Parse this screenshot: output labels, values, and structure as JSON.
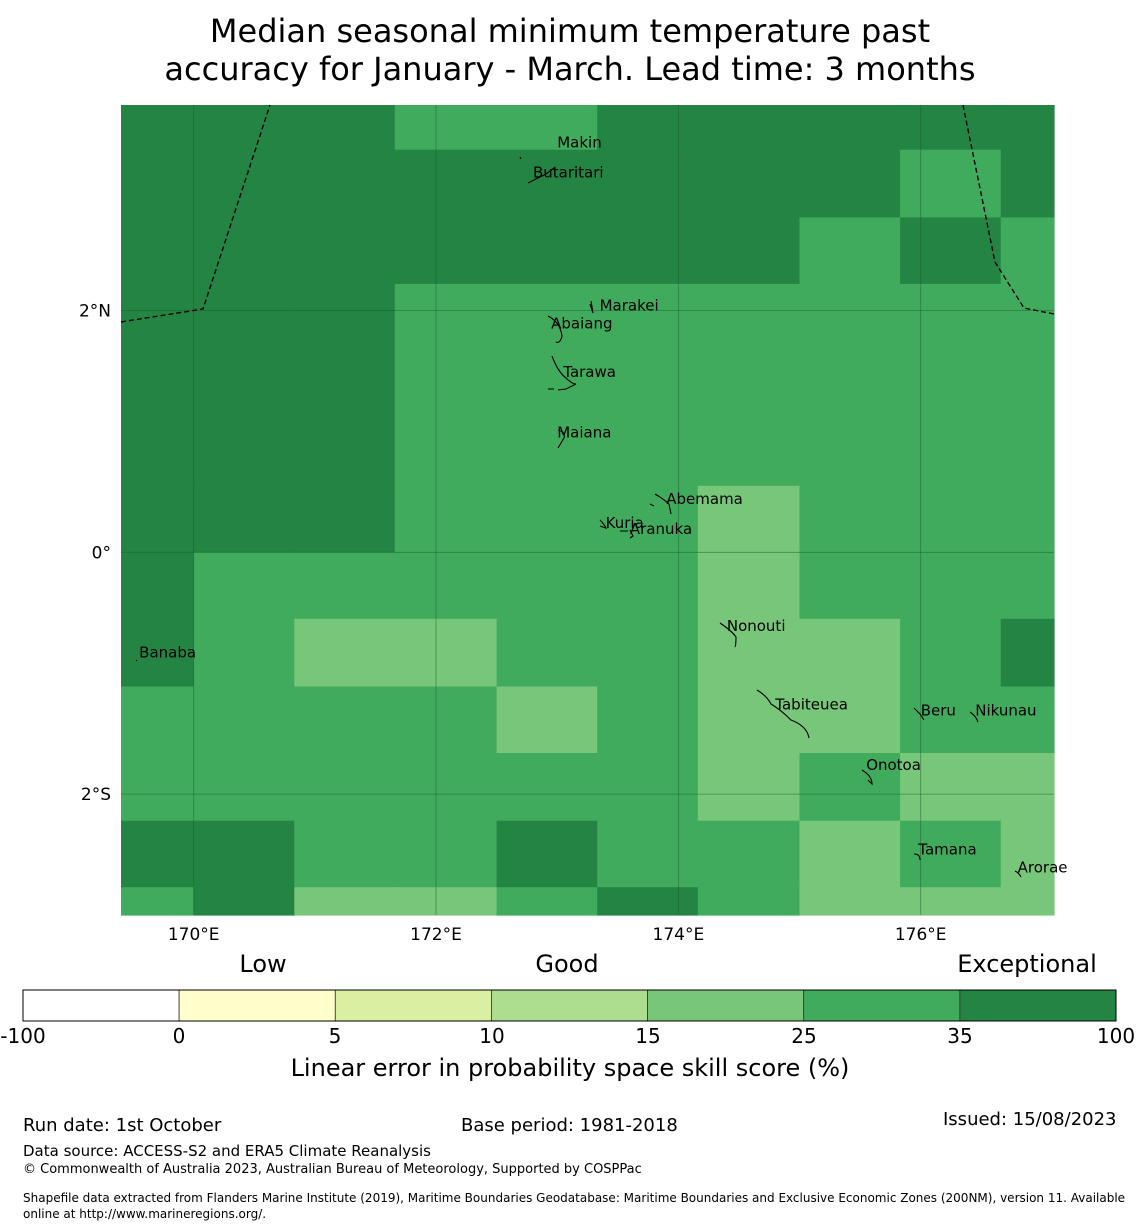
{
  "title_line1": "Median seasonal minimum temperature past",
  "title_line2": "accuracy for January - March. Lead time: 3 months",
  "map": {
    "lon_range": [
      169.4,
      177.1
    ],
    "lat_range": [
      -3.0,
      3.7
    ],
    "x_ticks": [
      {
        "lon": 170,
        "label": "170°E"
      },
      {
        "lon": 172,
        "label": "172°E"
      },
      {
        "lon": 174,
        "label": "174°E"
      },
      {
        "lon": 176,
        "label": "176°E"
      }
    ],
    "y_ticks": [
      {
        "lat": 2,
        "label": "2°N"
      },
      {
        "lat": 0,
        "label": "0°"
      },
      {
        "lat": -2,
        "label": "2°S"
      }
    ],
    "cell_colors": {
      "c25": "#78c679",
      "c35": "#41ab5d",
      "c100": "#238443"
    },
    "cell_grid_note": "rows top->bottom, columns left->right; value = colour class",
    "cols": [
      169.4,
      170.0,
      170.83,
      171.66,
      172.5,
      173.33,
      174.16,
      175.0,
      175.83,
      176.66,
      177.1
    ],
    "rows": [
      3.7,
      3.33,
      2.77,
      2.22,
      1.66,
      1.11,
      0.55,
      0.0,
      -0.55,
      -1.11,
      -1.66,
      -2.22,
      -2.77,
      -3.0
    ],
    "cells": [
      [
        "c100",
        "c100",
        "c100",
        "c35",
        "c35",
        "c100",
        "c100",
        "c100",
        "c100",
        "c100"
      ],
      [
        "c100",
        "c100",
        "c100",
        "c100",
        "c100",
        "c100",
        "c100",
        "c100",
        "c35",
        "c100"
      ],
      [
        "c100",
        "c100",
        "c100",
        "c100",
        "c100",
        "c100",
        "c100",
        "c35",
        "c100",
        "c35"
      ],
      [
        "c100",
        "c100",
        "c100",
        "c35",
        "c35",
        "c35",
        "c35",
        "c35",
        "c35",
        "c35"
      ],
      [
        "c100",
        "c100",
        "c100",
        "c35",
        "c35",
        "c35",
        "c35",
        "c35",
        "c35",
        "c35"
      ],
      [
        "c100",
        "c100",
        "c100",
        "c35",
        "c35",
        "c35",
        "c35",
        "c35",
        "c35",
        "c35"
      ],
      [
        "c100",
        "c100",
        "c100",
        "c35",
        "c35",
        "c35",
        "c25",
        "c35",
        "c35",
        "c35"
      ],
      [
        "c100",
        "c35",
        "c35",
        "c35",
        "c35",
        "c35",
        "c25",
        "c35",
        "c35",
        "c35"
      ],
      [
        "c100",
        "c35",
        "c25",
        "c25",
        "c35",
        "c35",
        "c25",
        "c25",
        "c35",
        "c100"
      ],
      [
        "c35",
        "c35",
        "c35",
        "c35",
        "c25",
        "c35",
        "c25",
        "c25",
        "c35",
        "c35"
      ],
      [
        "c35",
        "c35",
        "c35",
        "c35",
        "c35",
        "c35",
        "c25",
        "c35",
        "c25",
        "c25"
      ],
      [
        "c100",
        "c100",
        "c35",
        "c35",
        "c100",
        "c35",
        "c35",
        "c25",
        "c35",
        "c25"
      ],
      [
        "c35",
        "c100",
        "c25",
        "c25",
        "c35",
        "c100",
        "c35",
        "c25",
        "c25",
        "c25"
      ]
    ],
    "places": [
      {
        "name": "Makin",
        "lon": 173.0,
        "lat": 3.35
      },
      {
        "name": "Butaritari",
        "lon": 172.8,
        "lat": 3.1
      },
      {
        "name": "Marakei",
        "lon": 173.35,
        "lat": 2.0
      },
      {
        "name": "Abaiang",
        "lon": 172.95,
        "lat": 1.85
      },
      {
        "name": "Tarawa",
        "lon": 173.05,
        "lat": 1.45
      },
      {
        "name": "Maiana",
        "lon": 173.0,
        "lat": 0.95
      },
      {
        "name": "Abemama",
        "lon": 173.9,
        "lat": 0.4
      },
      {
        "name": "Kuria",
        "lon": 173.4,
        "lat": 0.2
      },
      {
        "name": "Aranuka",
        "lon": 173.6,
        "lat": 0.15
      },
      {
        "name": "Banaba",
        "lon": 169.55,
        "lat": -0.87
      },
      {
        "name": "Nonouti",
        "lon": 174.4,
        "lat": -0.65
      },
      {
        "name": "Beru",
        "lon": 176.0,
        "lat": -1.35
      },
      {
        "name": "Tabiteuea",
        "lon": 174.8,
        "lat": -1.3
      },
      {
        "name": "Nikunau",
        "lon": 176.45,
        "lat": -1.35
      },
      {
        "name": "Onotoa",
        "lon": 175.55,
        "lat": -1.8
      },
      {
        "name": "Tamana",
        "lon": 175.98,
        "lat": -2.5
      },
      {
        "name": "Arorae",
        "lon": 176.8,
        "lat": -2.65
      }
    ]
  },
  "colorbar": {
    "categories": [
      {
        "label": "Low",
        "at": -2.5
      },
      {
        "label": "Good",
        "at": 10
      },
      {
        "label": "Exceptional",
        "at": 90
      }
    ],
    "bins": [
      {
        "from": "-100",
        "to": "0",
        "color": "#ffffff"
      },
      {
        "from": "0",
        "to": "5",
        "color": "#ffffcc"
      },
      {
        "from": "5",
        "to": "10",
        "color": "#d9f0a3"
      },
      {
        "from": "10",
        "to": "15",
        "color": "#addd8e"
      },
      {
        "from": "15",
        "to": "25",
        "color": "#78c679"
      },
      {
        "from": "25",
        "to": "35",
        "color": "#41ab5d"
      },
      {
        "from": "35",
        "to": "100",
        "color": "#238443"
      }
    ],
    "tick_labels": [
      "-100",
      "0",
      "5",
      "10",
      "15",
      "25",
      "35",
      "100"
    ],
    "label": "Linear error in probability space skill score (%)"
  },
  "footer": {
    "run_date": "Run date: 1st October",
    "base_period": "Base period: 1981-2018",
    "issued": "Issued: 15/08/2023",
    "data_source": "Data source: ACCESS-S2 and ERA5 Climate Reanalysis",
    "copyright": "© Commonwealth of Australia 2023, Australian Bureau of Meteorology, Supported by COSPPac",
    "shapefile_line1": "Shapefile data extracted from Flanders Marine Institute (2019), Maritime Boundaries Geodatabase: Maritime Boundaries and Exclusive Economic Zones (200NM), version 11. Available",
    "shapefile_line2": "online at http://www.marineregions.org/."
  }
}
